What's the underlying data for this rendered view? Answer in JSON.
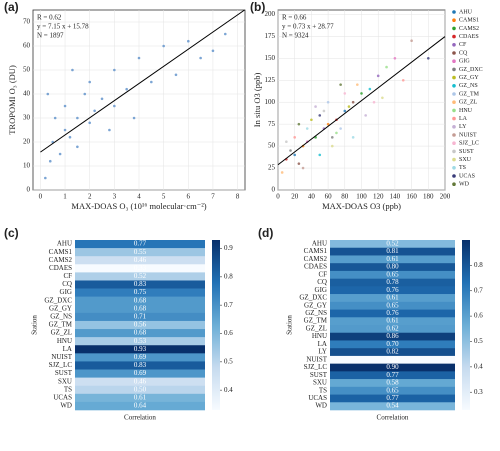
{
  "chart_data": [
    {
      "type": "scatter",
      "panel": "(a)",
      "xlabel": "MAX-DOAS O₃ (10¹⁶ molecular·cm⁻²)",
      "ylabel": "TROPOMI O₃ (DU)",
      "annotations": [
        "R = 0.62",
        "y = 7.15 x + 15.78",
        "N = 1897"
      ],
      "fit": {
        "slope": 7.15,
        "intercept": 15.78
      },
      "xlim": [
        -0.3,
        8.3
      ],
      "ylim": [
        0,
        75
      ],
      "xticks": [
        0,
        1,
        2,
        3,
        4,
        5,
        6,
        7,
        8
      ],
      "yticks": [
        0,
        10,
        20,
        30,
        40,
        50,
        60,
        70
      ],
      "series": [
        {
          "color": "#5b8fc9",
          "x": [
            0.2,
            0.4,
            0.5,
            0.8,
            1,
            1,
            1.2,
            1.5,
            1.5,
            1.8,
            2,
            2,
            2.2,
            2.5,
            2.8,
            3,
            3,
            3.5,
            3.8,
            4,
            4.5,
            5,
            5.5,
            6,
            6.5,
            7,
            7.5,
            0.3,
            0.6,
            1.3
          ],
          "values": [
            5,
            12,
            20,
            15,
            25,
            35,
            22,
            30,
            18,
            40,
            28,
            45,
            33,
            38,
            25,
            50,
            35,
            42,
            30,
            55,
            45,
            60,
            48,
            62,
            55,
            58,
            65,
            40,
            30,
            50
          ]
        }
      ]
    },
    {
      "type": "scatter",
      "panel": "(b)",
      "xlabel": "MAX-DOAS O3 (ppb)",
      "ylabel": "In situ O3 (ppb)",
      "annotations": [
        "R = 0.66",
        "y = 0.73 x + 28.77",
        "N = 9324"
      ],
      "fit": {
        "slope": 0.73,
        "intercept": 28.77
      },
      "xlim": [
        0,
        200
      ],
      "ylim": [
        0,
        205
      ],
      "xticks": [
        0,
        20,
        40,
        60,
        80,
        100,
        120,
        140,
        160,
        180,
        200
      ],
      "yticks": [
        0,
        25,
        50,
        75,
        100,
        125,
        150,
        175,
        200
      ],
      "series": [
        {
          "name": "AHU",
          "color": "#1f77b4",
          "x": [
            20,
            80
          ],
          "values": [
            40,
            90
          ]
        },
        {
          "name": "CAMS1",
          "color": "#ff7f0e",
          "x": [
            30,
            60
          ],
          "values": [
            50,
            75
          ]
        },
        {
          "name": "CAMS2",
          "color": "#2ca02c",
          "x": [
            45,
            100
          ],
          "values": [
            60,
            110
          ]
        },
        {
          "name": "CDAES",
          "color": "#d62728",
          "x": [
            10,
            70
          ],
          "values": [
            35,
            80
          ]
        },
        {
          "name": "CF",
          "color": "#9467bd",
          "x": [
            55,
            120
          ],
          "values": [
            70,
            130
          ]
        },
        {
          "name": "CQ",
          "color": "#8c564b",
          "x": [
            25,
            90
          ],
          "values": [
            30,
            100
          ]
        },
        {
          "name": "GIG",
          "color": "#e377c2",
          "x": [
            35,
            140
          ],
          "values": [
            55,
            150
          ]
        },
        {
          "name": "GZ_DXC",
          "color": "#7f7f7f",
          "x": [
            15,
            65
          ],
          "values": [
            45,
            60
          ]
        },
        {
          "name": "GZ_GY",
          "color": "#bcbd22",
          "x": [
            40,
            85
          ],
          "values": [
            80,
            95
          ]
        },
        {
          "name": "GZ_NS",
          "color": "#17becf",
          "x": [
            50,
            110
          ],
          "values": [
            40,
            115
          ]
        },
        {
          "name": "GZ_TM",
          "color": "#aec7e8",
          "x": [
            60,
            75
          ],
          "values": [
            100,
            70
          ]
        },
        {
          "name": "GZ_ZL",
          "color": "#ffbb78",
          "x": [
            5,
            95
          ],
          "values": [
            20,
            120
          ]
        },
        {
          "name": "HNU",
          "color": "#98df8a",
          "x": [
            70,
            130
          ],
          "values": [
            65,
            140
          ]
        },
        {
          "name": "LA",
          "color": "#ff9896",
          "x": [
            20,
            150
          ],
          "values": [
            60,
            125
          ]
        },
        {
          "name": "LY",
          "color": "#c5b0d5",
          "x": [
            45,
            105
          ],
          "values": [
            95,
            85
          ]
        },
        {
          "name": "NUIST",
          "color": "#c49c94",
          "x": [
            30,
            160
          ],
          "values": [
            25,
            170
          ]
        },
        {
          "name": "SJZ_LC",
          "color": "#f7b6d2",
          "x": [
            80,
            115
          ],
          "values": [
            110,
            100
          ]
        },
        {
          "name": "SUST",
          "color": "#c7c7c7",
          "x": [
            10,
            55
          ],
          "values": [
            55,
            90
          ]
        },
        {
          "name": "SXU",
          "color": "#dbdb8d",
          "x": [
            65,
            125
          ],
          "values": [
            50,
            105
          ]
        },
        {
          "name": "TS",
          "color": "#9edae5",
          "x": [
            35,
            90
          ],
          "values": [
            70,
            60
          ]
        },
        {
          "name": "UCAS",
          "color": "#393b79",
          "x": [
            50,
            180
          ],
          "values": [
            85,
            150
          ]
        },
        {
          "name": "WD",
          "color": "#637939",
          "x": [
            25,
            75
          ],
          "values": [
            75,
            120
          ]
        }
      ]
    },
    {
      "type": "heatmap",
      "panel": "(c)",
      "xlabel": "Correlation",
      "ylabel": "Station",
      "clim": [
        0.33,
        0.93
      ],
      "cticks": [
        0.4,
        0.5,
        0.6,
        0.7,
        0.8,
        0.9
      ],
      "categories": [
        "AHU",
        "CAMS1",
        "CAMS2",
        "CDAES",
        "CF",
        "CQ",
        "GIG",
        "GZ_DXC",
        "GZ_GY",
        "GZ_NS",
        "GZ_TM",
        "GZ_ZL",
        "HNU",
        "LA",
        "NUIST",
        "SJZ_LC",
        "SUST",
        "SXU",
        "TS",
        "UCAS",
        "WD"
      ],
      "values": [
        0.77,
        0.55,
        0.46,
        0.33,
        0.52,
        0.83,
        0.75,
        0.68,
        0.68,
        0.71,
        0.56,
        0.68,
        0.53,
        0.93,
        0.69,
        0.83,
        0.69,
        0.46,
        0.5,
        0.61,
        0.64
      ],
      "value_labels": [
        "0.77",
        "0.55",
        "0.46",
        "0.33",
        "0.52",
        "0.83",
        "0.75",
        "0.68",
        "0.68",
        "0.71",
        "0.56",
        "0.68",
        "0.53",
        "0.93",
        "0.69",
        "0.83",
        "0.69",
        "0.46",
        "0.50",
        "0.61",
        "0.64"
      ]
    },
    {
      "type": "heatmap",
      "panel": "(d)",
      "xlabel": "Correlation",
      "ylabel": "Station",
      "clim": [
        0.23,
        0.9
      ],
      "cticks": [
        0.3,
        0.4,
        0.5,
        0.6,
        0.7,
        0.8
      ],
      "categories": [
        "AHU",
        "CAMS1",
        "CAMS2",
        "CDAES",
        "CF",
        "CQ",
        "GIG",
        "GZ_DXC",
        "GZ_GY",
        "GZ_NS",
        "GZ_TM",
        "GZ_ZL",
        "HNU",
        "LA",
        "LY",
        "NUIST",
        "SJZ_LC",
        "SUST",
        "SXU",
        "TS",
        "UCAS",
        "WD"
      ],
      "values": [
        0.52,
        0.81,
        0.61,
        0.8,
        0.65,
        0.78,
        0.76,
        0.61,
        0.65,
        0.76,
        0.61,
        0.62,
        0.86,
        0.7,
        0.82,
        0.23,
        0.9,
        0.77,
        0.58,
        0.65,
        0.77,
        0.54
      ],
      "value_labels": [
        "0.52",
        "0.81",
        "0.61",
        "0.80",
        "0.65",
        "0.78",
        "0.76",
        "0.61",
        "0.65",
        "0.76",
        "0.61",
        "0.62",
        "0.86",
        "0.70",
        "0.82",
        "0.23",
        "0.90",
        "0.77",
        "0.58",
        "0.65",
        "0.77",
        "0.54"
      ]
    }
  ]
}
